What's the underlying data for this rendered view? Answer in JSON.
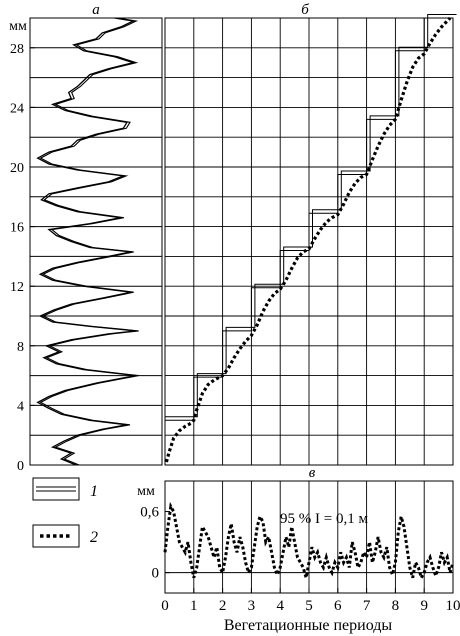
{
  "figure": {
    "panel_labels": {
      "a": "а",
      "b": "б",
      "c": "в"
    },
    "legend": [
      {
        "key": "1",
        "marker": "double-line"
      },
      {
        "key": "2",
        "marker": "dotted-line"
      }
    ],
    "colors": {
      "ink": "#000000",
      "background": "#ffffff"
    }
  },
  "chart_data": [
    {
      "id": "a",
      "type": "line",
      "title": "а",
      "ylabel": "мм",
      "ylim": [
        0,
        30
      ],
      "yticks": [
        0,
        4,
        8,
        12,
        16,
        20,
        24,
        28
      ],
      "boundaries": [
        2,
        4,
        6,
        8,
        10,
        12,
        14,
        16,
        18,
        20,
        22,
        24,
        26,
        28,
        30
      ],
      "grid": "horizontal lines at growth-ring boundaries",
      "profile": [
        {
          "y": 0.0,
          "x": 0.34
        },
        {
          "y": 0.4,
          "x": 0.22
        },
        {
          "y": 0.8,
          "x": 0.3
        },
        {
          "y": 1.2,
          "x": 0.15
        },
        {
          "y": 1.6,
          "x": 0.24
        },
        {
          "y": 2.0,
          "x": 0.35
        },
        {
          "y": 2.4,
          "x": 0.55
        },
        {
          "y": 2.7,
          "x": 0.75
        },
        {
          "y": 3.0,
          "x": 0.45
        },
        {
          "y": 3.4,
          "x": 0.22
        },
        {
          "y": 3.8,
          "x": 0.12
        },
        {
          "y": 4.2,
          "x": 0.03
        },
        {
          "y": 4.6,
          "x": 0.12
        },
        {
          "y": 5.0,
          "x": 0.25
        },
        {
          "y": 5.5,
          "x": 0.5
        },
        {
          "y": 6.0,
          "x": 0.82
        },
        {
          "y": 6.4,
          "x": 0.4
        },
        {
          "y": 6.8,
          "x": 0.18
        },
        {
          "y": 7.2,
          "x": 0.08
        },
        {
          "y": 7.6,
          "x": 0.2
        },
        {
          "y": 8.0,
          "x": 0.1
        },
        {
          "y": 8.4,
          "x": 0.3
        },
        {
          "y": 8.8,
          "x": 0.6
        },
        {
          "y": 9.0,
          "x": 0.82
        },
        {
          "y": 9.3,
          "x": 0.45
        },
        {
          "y": 9.6,
          "x": 0.15
        },
        {
          "y": 10.0,
          "x": 0.05
        },
        {
          "y": 10.4,
          "x": 0.16
        },
        {
          "y": 10.8,
          "x": 0.3
        },
        {
          "y": 11.2,
          "x": 0.55
        },
        {
          "y": 11.6,
          "x": 0.78
        },
        {
          "y": 12.0,
          "x": 0.4
        },
        {
          "y": 12.4,
          "x": 0.15
        },
        {
          "y": 12.8,
          "x": 0.05
        },
        {
          "y": 13.2,
          "x": 0.15
        },
        {
          "y": 13.6,
          "x": 0.35
        },
        {
          "y": 14.0,
          "x": 0.6
        },
        {
          "y": 14.3,
          "x": 0.78
        },
        {
          "y": 14.6,
          "x": 0.45
        },
        {
          "y": 15.0,
          "x": 0.3
        },
        {
          "y": 15.4,
          "x": 0.18
        },
        {
          "y": 15.8,
          "x": 0.12
        },
        {
          "y": 16.2,
          "x": 0.45
        },
        {
          "y": 16.6,
          "x": 0.7
        },
        {
          "y": 17.0,
          "x": 0.35
        },
        {
          "y": 17.4,
          "x": 0.18
        },
        {
          "y": 17.8,
          "x": 0.06
        },
        {
          "y": 18.2,
          "x": 0.12
        },
        {
          "y": 18.6,
          "x": 0.35
        },
        {
          "y": 19.0,
          "x": 0.6
        },
        {
          "y": 19.4,
          "x": 0.72
        },
        {
          "y": 19.8,
          "x": 0.35
        },
        {
          "y": 20.2,
          "x": 0.12
        },
        {
          "y": 20.6,
          "x": 0.03
        },
        {
          "y": 21.0,
          "x": 0.12
        },
        {
          "y": 21.4,
          "x": 0.3
        },
        {
          "y": 21.8,
          "x": 0.35
        },
        {
          "y": 22.2,
          "x": 0.5
        },
        {
          "y": 22.6,
          "x": 0.72
        },
        {
          "y": 23.0,
          "x": 0.75
        },
        {
          "y": 23.4,
          "x": 0.45
        },
        {
          "y": 23.8,
          "x": 0.25
        },
        {
          "y": 24.2,
          "x": 0.15
        },
        {
          "y": 24.6,
          "x": 0.3
        },
        {
          "y": 25.0,
          "x": 0.28
        },
        {
          "y": 25.4,
          "x": 0.35
        },
        {
          "y": 25.8,
          "x": 0.4
        },
        {
          "y": 26.2,
          "x": 0.45
        },
        {
          "y": 26.6,
          "x": 0.6
        },
        {
          "y": 27.0,
          "x": 0.8
        },
        {
          "y": 27.4,
          "x": 0.65
        },
        {
          "y": 27.8,
          "x": 0.4
        },
        {
          "y": 28.2,
          "x": 0.32
        },
        {
          "y": 28.6,
          "x": 0.5
        },
        {
          "y": 29.0,
          "x": 0.55
        },
        {
          "y": 29.4,
          "x": 0.7
        },
        {
          "y": 29.8,
          "x": 0.8
        },
        {
          "y": 30.0,
          "x": 0.65
        }
      ]
    },
    {
      "id": "b",
      "type": "line",
      "title": "б",
      "xlim": [
        0,
        10
      ],
      "ylim": [
        0,
        30
      ],
      "steps": [
        {
          "x": [
            0,
            1
          ],
          "y": 3.0
        },
        {
          "x": [
            1,
            2
          ],
          "y": 5.9
        },
        {
          "x": [
            2,
            3
          ],
          "y": 9.0
        },
        {
          "x": [
            3,
            4
          ],
          "y": 11.9
        },
        {
          "x": [
            4,
            5
          ],
          "y": 14.4
        },
        {
          "x": [
            5,
            6
          ],
          "y": 16.9
        },
        {
          "x": [
            6,
            7
          ],
          "y": 19.5
        },
        {
          "x": [
            7,
            8
          ],
          "y": 23.2
        },
        {
          "x": [
            8,
            9
          ],
          "y": 27.8
        },
        {
          "x": [
            9,
            10
          ],
          "y": 30.0
        }
      ],
      "series": [
        {
          "key": "2",
          "x": [
            0.05,
            0.15,
            0.3,
            0.5,
            0.7,
            0.9,
            1.0,
            1.1,
            1.3,
            1.5,
            1.7,
            1.9,
            2.0,
            2.2,
            2.4,
            2.6,
            2.8,
            3.0,
            3.2,
            3.4,
            3.6,
            3.8,
            4.0,
            4.2,
            4.4,
            4.6,
            4.8,
            5.0,
            5.2,
            5.4,
            5.6,
            5.8,
            6.0,
            6.2,
            6.4,
            6.6,
            6.8,
            7.0,
            7.2,
            7.4,
            7.6,
            7.8,
            8.0,
            8.2,
            8.4,
            8.6,
            8.8,
            9.0,
            9.2,
            9.4,
            9.6,
            9.8,
            9.9
          ],
          "y": [
            0.2,
            0.9,
            1.8,
            2.3,
            2.6,
            2.8,
            3.0,
            3.7,
            4.8,
            5.4,
            5.7,
            5.9,
            6.0,
            6.5,
            7.2,
            7.8,
            8.3,
            8.7,
            9.4,
            10.3,
            11.0,
            11.5,
            11.8,
            12.4,
            13.2,
            13.9,
            14.3,
            14.5,
            15.2,
            15.8,
            16.3,
            16.6,
            16.8,
            17.5,
            18.3,
            18.9,
            19.3,
            19.5,
            20.5,
            21.4,
            22.2,
            22.8,
            23.2,
            24.5,
            25.7,
            26.7,
            27.3,
            27.6,
            28.3,
            28.9,
            29.4,
            29.8,
            30.0
          ]
        }
      ]
    },
    {
      "id": "c",
      "type": "line",
      "title": "в",
      "xlabel": "Вегетационные периоды",
      "ylabel": "мм",
      "xlim": [
        0,
        10
      ],
      "ylim": [
        -0.2,
        0.9
      ],
      "xticks": [
        0,
        1,
        2,
        3,
        4,
        5,
        6,
        7,
        8,
        9,
        10
      ],
      "yticks": [
        0,
        0.6
      ],
      "ytick_labels": [
        "0",
        "0,6"
      ],
      "annotation": "95 % I = 0,1 м",
      "grid": "vertical lines at every integer x",
      "series": [
        {
          "key": "2",
          "x": [
            0.0,
            0.1,
            0.2,
            0.3,
            0.4,
            0.5,
            0.6,
            0.7,
            0.8,
            0.9,
            1.0,
            1.1,
            1.2,
            1.3,
            1.4,
            1.5,
            1.6,
            1.7,
            1.8,
            1.9,
            2.0,
            2.1,
            2.2,
            2.3,
            2.4,
            2.5,
            2.6,
            2.7,
            2.8,
            2.9,
            3.0,
            3.1,
            3.2,
            3.3,
            3.4,
            3.5,
            3.6,
            3.7,
            3.8,
            3.9,
            4.0,
            4.1,
            4.2,
            4.3,
            4.4,
            4.5,
            4.6,
            4.7,
            4.8,
            4.9,
            5.0,
            5.1,
            5.2,
            5.3,
            5.4,
            5.5,
            5.6,
            5.7,
            5.8,
            5.9,
            6.0,
            6.1,
            6.2,
            6.3,
            6.4,
            6.5,
            6.6,
            6.7,
            6.8,
            6.9,
            7.0,
            7.1,
            7.2,
            7.3,
            7.4,
            7.5,
            7.6,
            7.7,
            7.8,
            7.9,
            8.0,
            8.1,
            8.2,
            8.3,
            8.4,
            8.5,
            8.6,
            8.7,
            8.8,
            8.9,
            9.0,
            9.1,
            9.2,
            9.3,
            9.4,
            9.5,
            9.6,
            9.7,
            9.8,
            9.9,
            10.0
          ],
          "y": [
            0.2,
            0.45,
            0.65,
            0.6,
            0.45,
            0.3,
            0.25,
            0.2,
            0.3,
            0.1,
            -0.05,
            0.05,
            0.25,
            0.45,
            0.4,
            0.35,
            0.25,
            0.15,
            0.25,
            0.05,
            0.0,
            0.15,
            0.35,
            0.48,
            0.3,
            0.2,
            0.35,
            0.25,
            0.1,
            0.0,
            0.05,
            0.25,
            0.45,
            0.55,
            0.5,
            0.3,
            0.35,
            0.2,
            0.05,
            -0.02,
            0.05,
            0.2,
            0.35,
            0.25,
            0.45,
            0.3,
            0.15,
            0.1,
            0.05,
            -0.05,
            0.1,
            0.25,
            0.15,
            0.2,
            0.1,
            0.05,
            0.15,
            0.05,
            0.0,
            0.1,
            0.05,
            0.2,
            0.1,
            0.15,
            0.05,
            0.3,
            0.2,
            0.05,
            0.1,
            0.2,
            0.15,
            0.3,
            0.1,
            0.2,
            0.35,
            0.2,
            0.15,
            0.25,
            0.05,
            -0.02,
            0.1,
            0.4,
            0.55,
            0.45,
            0.25,
            0.05,
            -0.05,
            0.1,
            0.05,
            -0.05,
            0.0,
            0.1,
            0.15,
            0.05,
            -0.03,
            0.05,
            0.2,
            0.1,
            0.15,
            0.0,
            0.1
          ]
        }
      ]
    }
  ]
}
